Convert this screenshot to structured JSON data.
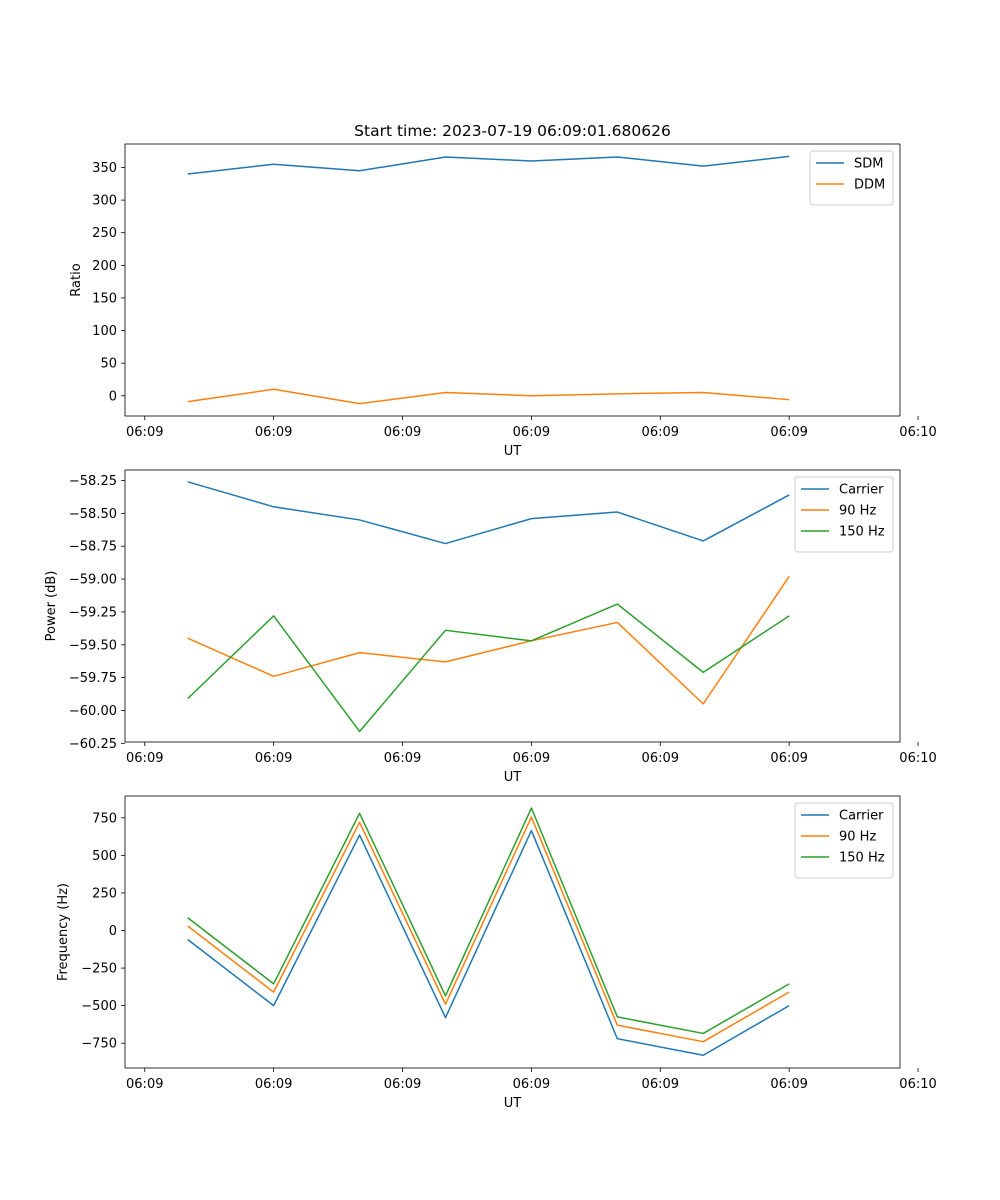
{
  "title": "Start time: 2023-07-19 06:09:01.680626",
  "colors": {
    "blue": "#1f77b4",
    "orange": "#ff7f0e",
    "green": "#2ca02c"
  },
  "chart_data": [
    {
      "type": "line",
      "xlabel": "UT",
      "ylabel": "Ratio",
      "x": [
        1,
        2,
        3,
        4,
        5,
        6,
        7,
        8
      ],
      "xlim": [
        0.27,
        9.29
      ],
      "xticks": [
        {
          "value": 0.5,
          "label": "06:09"
        },
        {
          "value": 2.0,
          "label": "06:09"
        },
        {
          "value": 3.5,
          "label": "06:09"
        },
        {
          "value": 5.0,
          "label": "06:09"
        },
        {
          "value": 6.5,
          "label": "06:09"
        },
        {
          "value": 8.0,
          "label": "06:09"
        },
        {
          "value": 9.5,
          "label": "06:10"
        }
      ],
      "ylim": [
        -31,
        386
      ],
      "yticks": [
        {
          "value": 0,
          "label": "0"
        },
        {
          "value": 50,
          "label": "50"
        },
        {
          "value": 100,
          "label": "100"
        },
        {
          "value": 150,
          "label": "150"
        },
        {
          "value": 200,
          "label": "200"
        },
        {
          "value": 250,
          "label": "250"
        },
        {
          "value": 300,
          "label": "300"
        },
        {
          "value": 350,
          "label": "350"
        }
      ],
      "legend": "top-right",
      "series": [
        {
          "name": "SDM",
          "color": "#1f77b4",
          "values": [
            340,
            355,
            345,
            366,
            360,
            366,
            352,
            367
          ]
        },
        {
          "name": "DDM",
          "color": "#ff7f0e",
          "values": [
            -9,
            10,
            -12,
            5,
            0,
            3,
            5,
            -6
          ]
        }
      ]
    },
    {
      "type": "line",
      "xlabel": "UT",
      "ylabel": "Power (dB)",
      "x": [
        1,
        2,
        3,
        4,
        5,
        6,
        7,
        8
      ],
      "xlim": [
        0.27,
        9.29
      ],
      "xticks": [
        {
          "value": 0.5,
          "label": "06:09"
        },
        {
          "value": 2.0,
          "label": "06:09"
        },
        {
          "value": 3.5,
          "label": "06:09"
        },
        {
          "value": 5.0,
          "label": "06:09"
        },
        {
          "value": 6.5,
          "label": "06:09"
        },
        {
          "value": 8.0,
          "label": "06:09"
        },
        {
          "value": 9.5,
          "label": "06:10"
        }
      ],
      "ylim": [
        -60.24,
        -58.17
      ],
      "yticks": [
        {
          "value": -60.25,
          "label": "−60.25"
        },
        {
          "value": -60.0,
          "label": "−60.00"
        },
        {
          "value": -59.75,
          "label": "−59.75"
        },
        {
          "value": -59.5,
          "label": "−59.50"
        },
        {
          "value": -59.25,
          "label": "−59.25"
        },
        {
          "value": -59.0,
          "label": "−59.00"
        },
        {
          "value": -58.75,
          "label": "−58.75"
        },
        {
          "value": -58.5,
          "label": "−58.50"
        },
        {
          "value": -58.25,
          "label": "−58.25"
        }
      ],
      "legend": "top-right",
      "series": [
        {
          "name": "Carrier",
          "color": "#1f77b4",
          "values": [
            -58.26,
            -58.45,
            -58.55,
            -58.73,
            -58.54,
            -58.49,
            -58.71,
            -58.36
          ]
        },
        {
          "name": "90 Hz",
          "color": "#ff7f0e",
          "values": [
            -59.45,
            -59.74,
            -59.56,
            -59.63,
            -59.47,
            -59.33,
            -59.95,
            -58.98
          ]
        },
        {
          "name": "150 Hz",
          "color": "#2ca02c",
          "values": [
            -59.91,
            -59.28,
            -60.16,
            -59.39,
            -59.47,
            -59.19,
            -59.71,
            -59.28
          ]
        }
      ]
    },
    {
      "type": "line",
      "xlabel": "UT",
      "ylabel": "Frequency (Hz)",
      "x": [
        1,
        2,
        3,
        4,
        5,
        6,
        7,
        8
      ],
      "xlim": [
        0.27,
        9.29
      ],
      "xticks": [
        {
          "value": 0.5,
          "label": "06:09"
        },
        {
          "value": 2.0,
          "label": "06:09"
        },
        {
          "value": 3.5,
          "label": "06:09"
        },
        {
          "value": 5.0,
          "label": "06:09"
        },
        {
          "value": 6.5,
          "label": "06:09"
        },
        {
          "value": 8.0,
          "label": "06:09"
        },
        {
          "value": 9.5,
          "label": "06:10"
        }
      ],
      "ylim": [
        -915,
        895
      ],
      "yticks": [
        {
          "value": -750,
          "label": "−750"
        },
        {
          "value": -500,
          "label": "−500"
        },
        {
          "value": -250,
          "label": "−250"
        },
        {
          "value": 0,
          "label": "0"
        },
        {
          "value": 250,
          "label": "250"
        },
        {
          "value": 500,
          "label": "500"
        },
        {
          "value": 750,
          "label": "750"
        }
      ],
      "legend": "top-right",
      "series": [
        {
          "name": "Carrier",
          "color": "#1f77b4",
          "values": [
            -60,
            -500,
            635,
            -580,
            665,
            -720,
            -830,
            -500
          ]
        },
        {
          "name": "90 Hz",
          "color": "#ff7f0e",
          "values": [
            30,
            -410,
            720,
            -490,
            755,
            -630,
            -740,
            -410
          ]
        },
        {
          "name": "150 Hz",
          "color": "#2ca02c",
          "values": [
            85,
            -355,
            780,
            -435,
            815,
            -575,
            -685,
            -355
          ]
        }
      ]
    }
  ]
}
